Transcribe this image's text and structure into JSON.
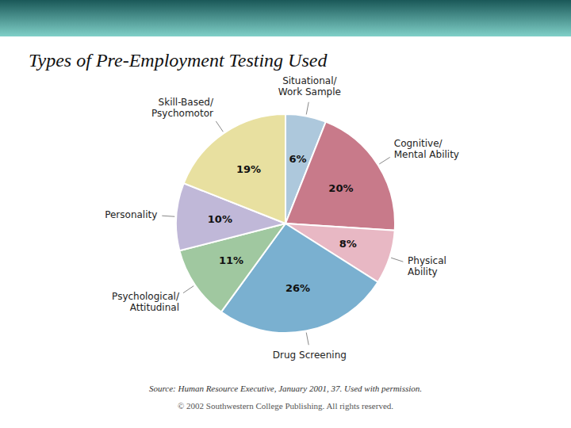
{
  "chart_data": {
    "type": "pie",
    "title": "Types of Pre-Employment Testing Used",
    "categories": [
      "Situational/\nWork Sample",
      "Cognitive/\nMental Ability",
      "Physical\nAbility",
      "Drug Screening",
      "Psychological/\nAttitudinal",
      "Personality",
      "Skill-Based/\nPsychomotor"
    ],
    "values": [
      6,
      20,
      8,
      26,
      11,
      10,
      19
    ],
    "value_labels": [
      "6%",
      "20%",
      "8%",
      "26%",
      "11%",
      "10%",
      "19%"
    ],
    "data_labels": true,
    "colors": [
      "#adc8dc",
      "#c87a8a",
      "#e8b8c4",
      "#7ab0d0",
      "#a0c8a0",
      "#c0b8d8",
      "#e8e0a0"
    ],
    "annotations": [
      "Source: Human Resource Executive, January 2001, 37.  Used with permission.",
      "© 2002 Southwestern College Publishing. All rights reserved."
    ]
  }
}
